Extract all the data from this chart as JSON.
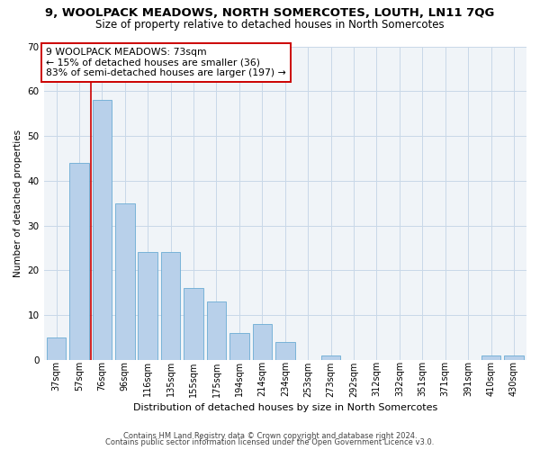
{
  "title": "9, WOOLPACK MEADOWS, NORTH SOMERCOTES, LOUTH, LN11 7QG",
  "subtitle": "Size of property relative to detached houses in North Somercotes",
  "xlabel": "Distribution of detached houses by size in North Somercotes",
  "ylabel": "Number of detached properties",
  "bar_labels": [
    "37sqm",
    "57sqm",
    "76sqm",
    "96sqm",
    "116sqm",
    "135sqm",
    "155sqm",
    "175sqm",
    "194sqm",
    "214sqm",
    "234sqm",
    "253sqm",
    "273sqm",
    "292sqm",
    "312sqm",
    "332sqm",
    "351sqm",
    "371sqm",
    "391sqm",
    "410sqm",
    "430sqm"
  ],
  "bar_values": [
    5,
    44,
    58,
    35,
    24,
    24,
    16,
    13,
    6,
    8,
    4,
    0,
    1,
    0,
    0,
    0,
    0,
    0,
    0,
    1,
    1
  ],
  "bar_color": "#b8d0ea",
  "bar_edge_color": "#6aacd4",
  "vline_x": 1.5,
  "vline_color": "#cc0000",
  "annotation_title": "9 WOOLPACK MEADOWS: 73sqm",
  "annotation_line1": "← 15% of detached houses are smaller (36)",
  "annotation_line2": "83% of semi-detached houses are larger (197) →",
  "annotation_box_edge": "#cc0000",
  "ylim": [
    0,
    70
  ],
  "yticks": [
    0,
    10,
    20,
    30,
    40,
    50,
    60,
    70
  ],
  "footer1": "Contains HM Land Registry data © Crown copyright and database right 2024.",
  "footer2": "Contains public sector information licensed under the Open Government Licence v3.0.",
  "bg_color": "#f0f4f8"
}
